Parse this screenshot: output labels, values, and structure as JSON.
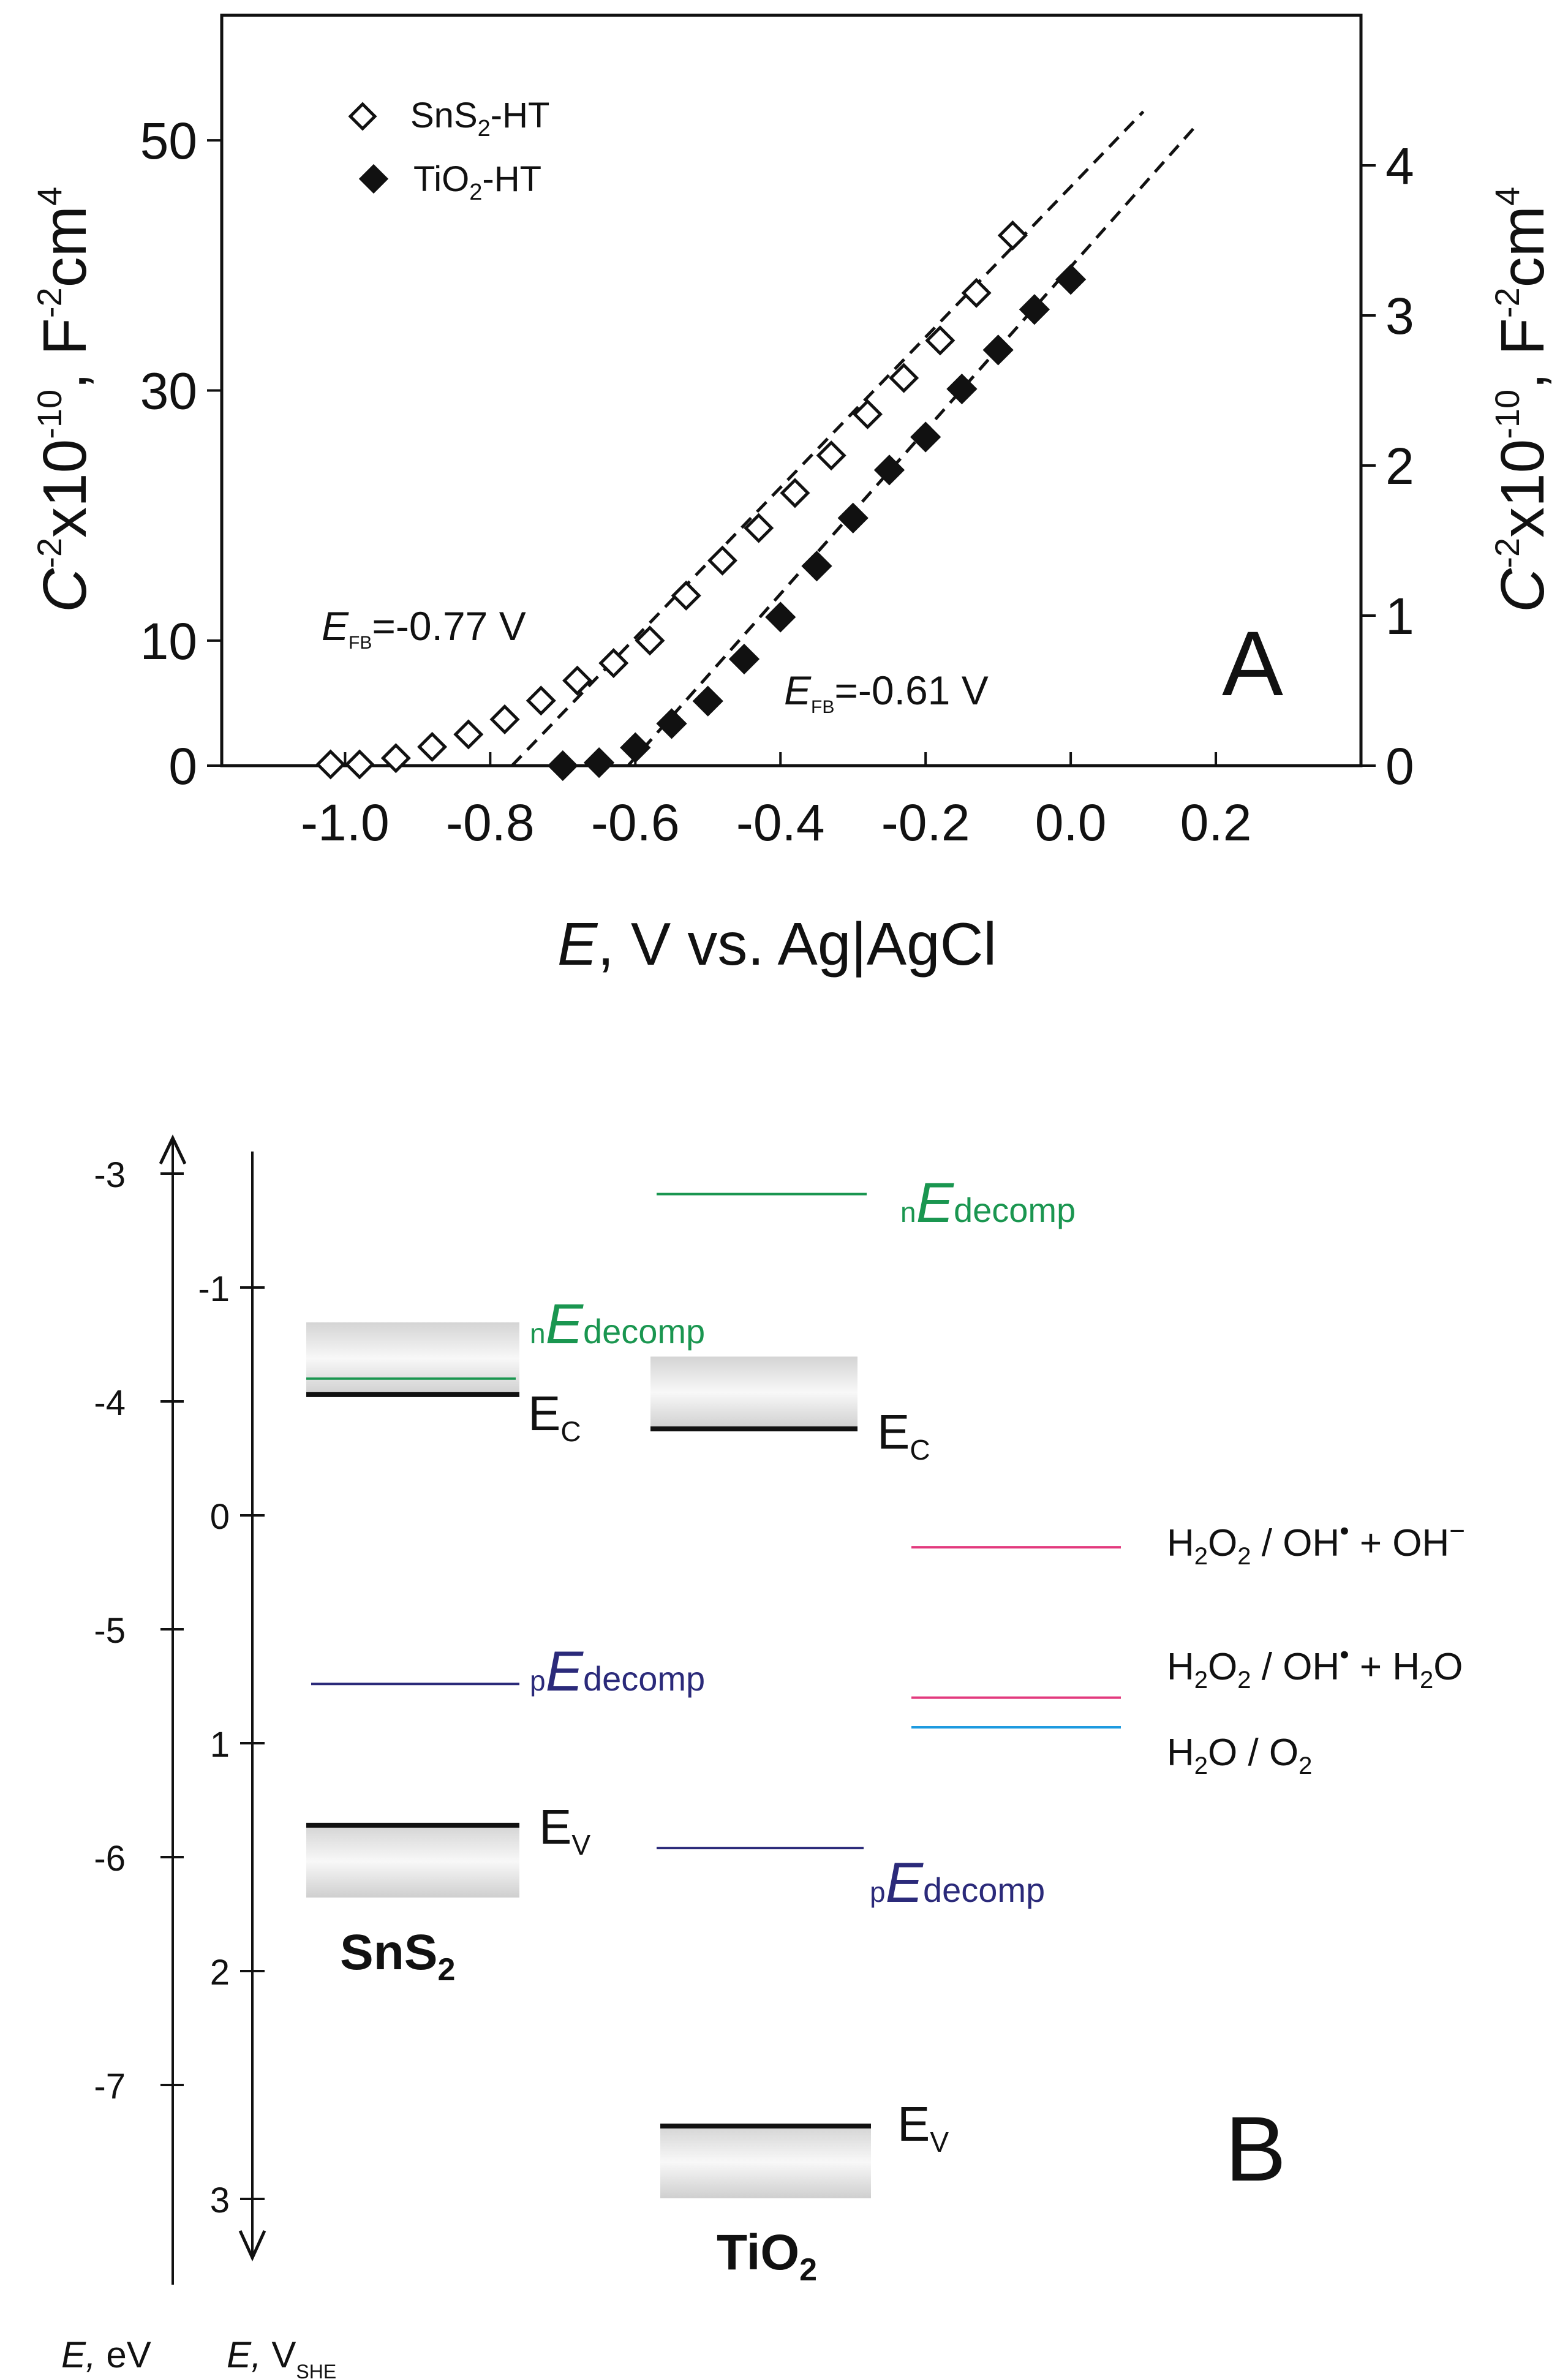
{
  "colors": {
    "ink": "#111111",
    "green": "#1a9650",
    "navy": "#2b2a7a",
    "pink": "#e23a7e",
    "cyan": "#1e9be0",
    "band_light": "#f7f7f7",
    "band_dark": "#cfcfcf"
  },
  "chart_data": [
    {
      "type": "scatter",
      "panel_label": "A",
      "xlabel": {
        "italic": "E",
        "rest": ", V vs. Ag|AgCl"
      },
      "ylabel_left": {
        "base": "C",
        "sup1": "-2",
        "mid": "x10",
        "sup2": "-10",
        "tail": ", F",
        "sup3": "-2",
        "tail2": "cm",
        "sup4": "4"
      },
      "ylabel_right": {
        "base": "C",
        "sup1": "-2",
        "mid": "x10",
        "sup2": "-10",
        "tail": ", F",
        "sup3": "-2",
        "tail2": "cm",
        "sup4": "4"
      },
      "xlim": [
        -1.17,
        0.4
      ],
      "ylim_left": [
        0,
        60
      ],
      "ylim_right": [
        0,
        5
      ],
      "xticks": [
        {
          "v": -1.0,
          "label": "-1.0"
        },
        {
          "v": -0.8,
          "label": "-0.8"
        },
        {
          "v": -0.6,
          "label": "-0.6"
        },
        {
          "v": -0.4,
          "label": "-0.4"
        },
        {
          "v": -0.2,
          "label": "-0.2"
        },
        {
          "v": 0.0,
          "label": "0.0"
        },
        {
          "v": 0.2,
          "label": "0.2"
        }
      ],
      "yticks_left": [
        {
          "v": 0,
          "label": "0"
        },
        {
          "v": 10,
          "label": "10"
        },
        {
          "v": 30,
          "label": "30"
        },
        {
          "v": 50,
          "label": "50"
        }
      ],
      "yticks_right": [
        {
          "v": 0,
          "label": "0"
        },
        {
          "v": 1,
          "label": "1"
        },
        {
          "v": 2,
          "label": "2"
        },
        {
          "v": 3,
          "label": "3"
        },
        {
          "v": 4,
          "label": "4"
        }
      ],
      "legend_position": "top-left",
      "series": [
        {
          "name": "SnS2-HT",
          "legend": {
            "pre": "SnS",
            "sub": "2",
            "post": "-HT"
          },
          "marker": "open-diamond",
          "axis": "left",
          "x": [
            -1.02,
            -0.98,
            -0.93,
            -0.88,
            -0.83,
            -0.78,
            -0.73,
            -0.68,
            -0.63,
            -0.58,
            -0.53,
            -0.48,
            -0.43,
            -0.38,
            -0.33,
            -0.28,
            -0.23,
            -0.18,
            -0.13,
            -0.08
          ],
          "y": [
            0.1,
            0.1,
            0.6,
            1.5,
            2.5,
            3.7,
            5.2,
            6.8,
            8.2,
            10.0,
            13.6,
            16.4,
            19.0,
            21.8,
            24.8,
            28.1,
            31.0,
            34.0,
            37.8,
            42.4
          ]
        },
        {
          "name": "TiO2-HT",
          "legend": {
            "pre": "TiO",
            "sub": "2",
            "post": "-HT"
          },
          "marker": "filled-diamond",
          "axis": "right",
          "x": [
            -0.7,
            -0.65,
            -0.6,
            -0.55,
            -0.5,
            -0.45,
            -0.4,
            -0.35,
            -0.3,
            -0.25,
            -0.2,
            -0.15,
            -0.1,
            -0.05,
            0.0
          ],
          "y": [
            0.0,
            0.02,
            0.12,
            0.28,
            0.43,
            0.71,
            0.99,
            1.33,
            1.65,
            1.97,
            2.19,
            2.51,
            2.77,
            3.04,
            3.24
          ]
        }
      ],
      "fits": [
        {
          "series": "SnS2-HT",
          "axis": "left",
          "x0": -0.77,
          "y0": 0,
          "x1": 0.1,
          "y1": 52.3
        },
        {
          "series": "TiO2-HT",
          "axis": "right",
          "x0": -0.61,
          "y0": 0,
          "x1": 0.17,
          "y1": 4.25
        }
      ],
      "annotations": [
        {
          "name": "sns2-efb",
          "italic": "E",
          "sub": "FB",
          "text": "=-0.77 V"
        },
        {
          "name": "tio2-efb",
          "italic": "E",
          "sub": "FB",
          "text": "=-0.61 V"
        }
      ]
    },
    {
      "type": "diagram",
      "panel_label": "B",
      "axis_ev": {
        "label_italic": "E,",
        "label_rest": " eV",
        "ticks": [
          {
            "v": -3,
            "label": "-3"
          },
          {
            "v": -4,
            "label": "-4"
          },
          {
            "v": -5,
            "label": "-5"
          },
          {
            "v": -6,
            "label": "-6"
          },
          {
            "v": -7,
            "label": "-7"
          }
        ]
      },
      "axis_vshe": {
        "label_italic": "E,",
        "label_rest": " V",
        "label_sub": "SHE",
        "ticks": [
          {
            "v": -1,
            "label": "-1"
          },
          {
            "v": 0,
            "label": "0"
          },
          {
            "v": 1,
            "label": "1"
          },
          {
            "v": 2,
            "label": "2"
          },
          {
            "v": 3,
            "label": "3"
          }
        ]
      },
      "materials": [
        {
          "name": "SnS2",
          "label_pre": "SnS",
          "label_sub": "2",
          "ec_v": -0.53,
          "ev_v": 1.36,
          "n_decomp_v": -0.6,
          "p_decomp_v": 0.74,
          "ec_label": {
            "pre": "E",
            "sub": "C"
          },
          "ev_label": {
            "pre": "E",
            "sub": "V"
          }
        },
        {
          "name": "TiO2",
          "label_pre": "TiO",
          "label_sub": "2",
          "ec_v": -0.38,
          "ev_v": 2.68,
          "n_decomp_v": -1.41,
          "p_decomp_v": 1.46,
          "ec_label": {
            "pre": "E",
            "sub": "C"
          },
          "ev_label": {
            "pre": "E",
            "sub": "V"
          }
        }
      ],
      "decomp_labels": {
        "n": {
          "pre": "n",
          "italic": "E",
          "sub": "decomp"
        },
        "p": {
          "pre": "p",
          "italic": "E",
          "sub": "decomp"
        }
      },
      "redox": [
        {
          "name": "h2o2-oh-oh",
          "potential_v": 0.14,
          "color": "pink",
          "parts": [
            "H",
            "2",
            "O",
            "2",
            " / OH",
            "•",
            " + OH",
            "−"
          ]
        },
        {
          "name": "h2o2-oh-h2o",
          "potential_v": 0.8,
          "color": "pink",
          "parts": [
            "H",
            "2",
            "O",
            "2",
            " / OH",
            "•",
            " + H",
            "2",
            "O"
          ]
        },
        {
          "name": "h2o-o2",
          "potential_v": 0.93,
          "color": "cyan",
          "parts": [
            "H",
            "2",
            "O / O",
            "2"
          ]
        }
      ]
    }
  ]
}
